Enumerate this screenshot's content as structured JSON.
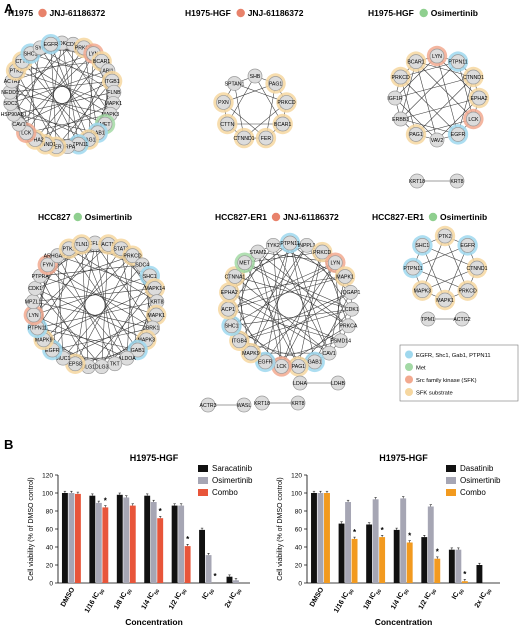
{
  "panel_a": {
    "label": "A",
    "legend": [
      {
        "text": "EGFR, Shc1, Gab1, PTPN11",
        "color": "#9fd8ee"
      },
      {
        "text": "Met",
        "color": "#a3d9a5"
      },
      {
        "text": "Src family kinase (SFK)",
        "color": "#f2a98f"
      },
      {
        "text": "SFK substrate",
        "color": "#f6d7a0"
      }
    ],
    "networks": [
      {
        "cell": "H1975",
        "drug": "JNJ-61186372",
        "drug_color": "#e8826b",
        "center": [
          62,
          95
        ],
        "radius": 52,
        "nodes": [
          "CDK2",
          "CDK1",
          "PRKCD",
          "LYN",
          "BCAR1",
          "ABI1",
          "ITGB1",
          "FLNB",
          "MAPK1",
          "MAPK3",
          "MET",
          "GAB1",
          "PAG1",
          "PTPN11",
          "SIRPA",
          "FER",
          "CTNND1",
          "EPHA2",
          "LCK",
          "CAV1",
          "HSP90AB1",
          "SDC3",
          "NEDD9",
          "ACTA1",
          "PTK2",
          "CTTN",
          "SHC1",
          "SYK",
          "EGFR"
        ],
        "hl": {
          "EGFR": "#9fd8ee",
          "SHC1": "#9fd8ee",
          "GAB1": "#9fd8ee",
          "PTPN11": "#9fd8ee",
          "MET": "#a3d9a5",
          "LYN": "#f2a98f",
          "LCK": "#f2a98f",
          "PRKCD": "#f6d7a0",
          "BCAR1": "#f6d7a0",
          "ITGB1": "#f6d7a0",
          "CTTN": "#f6d7a0",
          "PAG1": "#f6d7a0",
          "EPHA2": "#f6d7a0",
          "CTNND1": "#f6d7a0",
          "PTK2": "#f6d7a0",
          "FER": "#f6d7a0"
        }
      },
      {
        "cell": "H1975-HGF",
        "drug": "JNJ-61186372",
        "drug_color": "#e8826b",
        "center": [
          255,
          108
        ],
        "radius": 32,
        "nodes": [
          "SHB",
          "PAG1",
          "PRKCD",
          "BCAR1",
          "FER",
          "CTNND1",
          "CTTN",
          "PXN",
          "SPTAN1"
        ],
        "hl": {
          "PRKCD": "#f6d7a0",
          "BCAR1": "#f6d7a0",
          "PAG1": "#f6d7a0",
          "CTTN": "#f6d7a0",
          "PXN": "#f6d7a0",
          "CTNND1": "#f6d7a0",
          "FER": "#f6d7a0"
        }
      },
      {
        "cell": "H1975-HGF",
        "drug": "Osimertinib",
        "drug_color": "#8fcf8f",
        "center": [
          437,
          98
        ],
        "radius": 42,
        "nodes": [
          "LYN",
          "PTPN11",
          "CTNND1",
          "EPHA2",
          "LCK",
          "EGFR",
          "VAV2",
          "PAG1",
          "ERBB3",
          "IGF1R",
          "PRKCD",
          "BCAR1"
        ],
        "hl": {
          "EGFR": "#9fd8ee",
          "PTPN11": "#9fd8ee",
          "LYN": "#f2a98f",
          "LCK": "#f2a98f",
          "PRKCD": "#f6d7a0",
          "BCAR1": "#f6d7a0",
          "EPHA2": "#f6d7a0",
          "CTNND1": "#f6d7a0",
          "PAG1": "#f6d7a0"
        }
      },
      {
        "cell": "HCC827",
        "drug": "Osimertinib",
        "drug_color": "#8fcf8f",
        "center": [
          95,
          305
        ],
        "radius": 62,
        "nodes": [
          "CFL1",
          "ACTB",
          "STAT3",
          "PRKCD",
          "SDC4",
          "SHC1",
          "MAPK14",
          "KRT8",
          "MAPK1",
          "BRK1",
          "MAPK3",
          "GAB1",
          "ALDOA",
          "TKT",
          "DLG3",
          "DLG1",
          "EPS8",
          "MUC1",
          "EGFR",
          "MAPK9",
          "PTPN11",
          "LYN",
          "MPZL1",
          "CDK1",
          "PTPRA",
          "FYN",
          "ARHGAP35",
          "PTK2",
          "TLN1"
        ],
        "hl": {
          "EGFR": "#9fd8ee",
          "SHC1": "#9fd8ee",
          "GAB1": "#9fd8ee",
          "PTPN11": "#9fd8ee",
          "LYN": "#f2a98f",
          "FYN": "#f2a98f",
          "PRKCD": "#f6d7a0",
          "PTK2": "#f6d7a0",
          "ACTB": "#f6d7a0",
          "TLN1": "#f6d7a0",
          "STAT3": "#f6d7a0",
          "MAPK14": "#f6d7a0",
          "MAPK1": "#f6d7a0",
          "MAPK3": "#f6d7a0",
          "MAPK9": "#f6d7a0",
          "EPS8": "#f6d7a0"
        }
      },
      {
        "cell": "HCC827-ER1",
        "drug": "JNJ-61186372",
        "drug_color": "#e8826b",
        "center": [
          290,
          305
        ],
        "radius": 62,
        "nodes": [
          "PTPN11",
          "INPPL1",
          "PRKCD",
          "LYN",
          "MAPK1",
          "IQGAP1",
          "CDK1",
          "PRKCA",
          "PSMD14",
          "CAV1",
          "GAB1",
          "PAG1",
          "LCK",
          "EGFR",
          "MAPK9",
          "ITGB4",
          "SHC1",
          "ACP1",
          "EPHA2",
          "CTNNA1",
          "MET",
          "STAM2",
          "TYK2"
        ],
        "hl": {
          "EGFR": "#9fd8ee",
          "SHC1": "#9fd8ee",
          "GAB1": "#9fd8ee",
          "PTPN11": "#9fd8ee",
          "MET": "#a3d9a5",
          "LYN": "#f2a98f",
          "LCK": "#f2a98f",
          "PRKCD": "#f6d7a0",
          "EPHA2": "#f6d7a0",
          "ITGB4": "#f6d7a0",
          "MAPK1": "#f6d7a0",
          "ACP1": "#f6d7a0",
          "PAG1": "#f6d7a0",
          "MAPK9": "#f6d7a0",
          "CTNNA1": "#f6d7a0"
        }
      },
      {
        "cell": "HCC827-ER1",
        "drug": "Osimertinib",
        "drug_color": "#8fcf8f",
        "center": [
          445,
          268
        ],
        "radius": 32,
        "nodes": [
          "PTK2",
          "EGFR",
          "CTNND1",
          "PRKCD",
          "MAPK1",
          "MAPK3",
          "PTPN11",
          "SHC1"
        ],
        "hl": {
          "EGFR": "#9fd8ee",
          "SHC1": "#9fd8ee",
          "PTPN11": "#9fd8ee",
          "PTK2": "#f6d7a0",
          "PRKCD": "#f6d7a0",
          "CTNND1": "#f6d7a0",
          "MAPK1": "#f6d7a0",
          "MAPK3": "#f6d7a0"
        }
      }
    ],
    "extra_pairs": [
      {
        "a": "KRT18",
        "b": "KRT8",
        "pos": [
          [
            417,
            181
          ],
          [
            457,
            181
          ]
        ]
      },
      {
        "a": "TPM1",
        "b": "ACTG2",
        "pos": [
          [
            428,
            319
          ],
          [
            462,
            319
          ]
        ]
      },
      {
        "a": "LDHA",
        "b": "LDHB",
        "pos": [
          [
            300,
            383
          ],
          [
            338,
            383
          ]
        ]
      },
      {
        "a": "KRT18",
        "b": "KRT8",
        "pos": [
          [
            262,
            403
          ],
          [
            298,
            403
          ]
        ]
      },
      {
        "a": "ACTR3",
        "b": "WASL",
        "pos": [
          [
            208,
            405
          ],
          [
            244,
            405
          ]
        ]
      }
    ]
  },
  "panel_b": {
    "label": "B",
    "ylabel": "Cell viability (% of DMSO control)",
    "xlabel": "Concentration",
    "star": "*"
  },
  "chart_data": [
    {
      "type": "bar",
      "title": "H1975-HGF",
      "xlabel": "Concentration",
      "ylabel": "Cell viability (% of DMSO control)",
      "ylim": [
        0,
        120
      ],
      "yticks": [
        0,
        20,
        40,
        60,
        80,
        100,
        120
      ],
      "categories": [
        "DMSO",
        "1/16 IC50",
        "1/8 IC50",
        "1/4 IC50",
        "1/2 IC50",
        "IC50",
        "2x IC50"
      ],
      "series": [
        {
          "name": "Saracatinib",
          "color": "#111111",
          "values": [
            100,
            97,
            98,
            97,
            86,
            59,
            7
          ]
        },
        {
          "name": "Osimertinib",
          "color": "#a6a6b4",
          "values": [
            100,
            89,
            95,
            90,
            86,
            31,
            3
          ]
        },
        {
          "name": "Combo",
          "color": "#e8553a",
          "values": [
            99,
            84,
            86,
            72,
            41,
            0,
            0
          ]
        }
      ],
      "stars": [
        1,
        3,
        4,
        5
      ],
      "legend": "top-right"
    },
    {
      "type": "bar",
      "title": "H1975-HGF",
      "xlabel": "Concentration",
      "ylabel": "Cell viability (% of DMSO control)",
      "ylim": [
        0,
        120
      ],
      "yticks": [
        0,
        20,
        40,
        60,
        80,
        100,
        120
      ],
      "categories": [
        "DMSO",
        "1/16 IC50",
        "1/8 IC50",
        "1/4 IC50",
        "1/2 IC50",
        "IC50",
        "2x IC50"
      ],
      "series": [
        {
          "name": "Dasatinib",
          "color": "#111111",
          "values": [
            100,
            66,
            65,
            59,
            51,
            37,
            20
          ]
        },
        {
          "name": "Osimertinib",
          "color": "#a6a6b4",
          "values": [
            100,
            90,
            93,
            94,
            85,
            37,
            0
          ]
        },
        {
          "name": "Combo",
          "color": "#f29a1f",
          "values": [
            100,
            49,
            51,
            45,
            27,
            2,
            0
          ]
        }
      ],
      "stars": [
        1,
        2,
        3,
        4,
        5
      ],
      "legend": "top-right"
    }
  ]
}
